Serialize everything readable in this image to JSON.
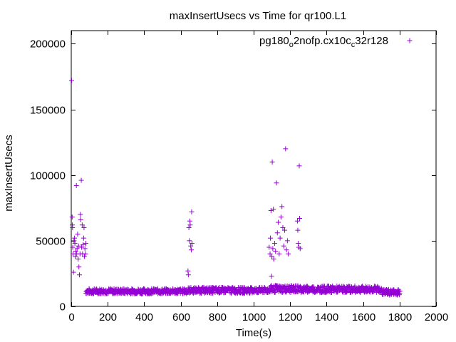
{
  "chart_data": {
    "type": "scatter",
    "title": "maxInsertUsecs vs Time for qr100.L1",
    "xlabel": "Time(s)",
    "ylabel": "maxInsertUsecs",
    "xlim": [
      0,
      2000
    ],
    "ylim": [
      0,
      210000
    ],
    "xticks": [
      "0",
      "200",
      "400",
      "600",
      "800",
      "1000",
      "1200",
      "1400",
      "1600",
      "1800",
      "2000"
    ],
    "yticks": [
      "0",
      "50000",
      "100000",
      "150000",
      "200000"
    ],
    "grid": false,
    "legend_position": "top-right",
    "marker": "plus",
    "series": [
      {
        "name_parts": [
          "pg180",
          "o",
          "2nofp.cx10c",
          "c",
          "32r128"
        ],
        "color": "#9400d3",
        "points": [
          [
            2,
            172000
          ],
          [
            5,
            68000
          ],
          [
            6,
            62000
          ],
          [
            7,
            60000
          ],
          [
            8,
            45000
          ],
          [
            10,
            40000
          ],
          [
            12,
            26000
          ],
          [
            15,
            50000
          ],
          [
            18,
            52000
          ],
          [
            20,
            48000
          ],
          [
            22,
            38000
          ],
          [
            25,
            42000
          ],
          [
            28,
            92000
          ],
          [
            30,
            40000
          ],
          [
            32,
            44000
          ],
          [
            35,
            55000
          ],
          [
            38,
            36000
          ],
          [
            40,
            46000
          ],
          [
            42,
            30000
          ],
          [
            45,
            24000
          ],
          [
            48,
            40000
          ],
          [
            50,
            70000
          ],
          [
            52,
            66000
          ],
          [
            55,
            96000
          ],
          [
            57,
            45000
          ],
          [
            60,
            62000
          ],
          [
            62,
            40000
          ],
          [
            65,
            47000
          ],
          [
            68,
            52000
          ],
          [
            70,
            60000
          ],
          [
            72,
            38000
          ],
          [
            75,
            44000
          ],
          [
            78,
            40000
          ],
          [
            80,
            48000
          ],
          [
            640,
            27000
          ],
          [
            642,
            24000
          ],
          [
            645,
            60000
          ],
          [
            648,
            50000
          ],
          [
            650,
            65000
          ],
          [
            652,
            62000
          ],
          [
            655,
            46000
          ],
          [
            658,
            43000
          ],
          [
            660,
            72000
          ],
          [
            662,
            48000
          ],
          [
            1085,
            45000
          ],
          [
            1090,
            40000
          ],
          [
            1092,
            52000
          ],
          [
            1095,
            73000
          ],
          [
            1098,
            23000
          ],
          [
            1100,
            38000
          ],
          [
            1102,
            110000
          ],
          [
            1105,
            44000
          ],
          [
            1108,
            74000
          ],
          [
            1110,
            36000
          ],
          [
            1115,
            48000
          ],
          [
            1120,
            42000
          ],
          [
            1125,
            94000
          ],
          [
            1130,
            56000
          ],
          [
            1135,
            64000
          ],
          [
            1140,
            40000
          ],
          [
            1145,
            52000
          ],
          [
            1150,
            68000
          ],
          [
            1155,
            76000
          ],
          [
            1160,
            60000
          ],
          [
            1165,
            46000
          ],
          [
            1170,
            58000
          ],
          [
            1175,
            120000
          ],
          [
            1180,
            43000
          ],
          [
            1185,
            50000
          ],
          [
            1190,
            40000
          ],
          [
            1240,
            65000
          ],
          [
            1242,
            58000
          ],
          [
            1245,
            48000
          ],
          [
            1248,
            45000
          ],
          [
            1250,
            107000
          ],
          [
            1252,
            67000
          ],
          [
            1255,
            44000
          ]
        ],
        "baseline": {
          "x_start": 80,
          "x_end": 1800,
          "step": 3,
          "segments": [
            {
              "x0": 80,
              "x1": 640,
              "y_min": 9500,
              "y_max": 13500
            },
            {
              "x0": 640,
              "x1": 1080,
              "y_min": 10000,
              "y_max": 14500
            },
            {
              "x0": 1080,
              "x1": 1260,
              "y_min": 10500,
              "y_max": 16000
            },
            {
              "x0": 1260,
              "x1": 1700,
              "y_min": 10500,
              "y_max": 15500
            },
            {
              "x0": 1700,
              "x1": 1800,
              "y_min": 8500,
              "y_max": 13000
            }
          ]
        }
      }
    ]
  }
}
